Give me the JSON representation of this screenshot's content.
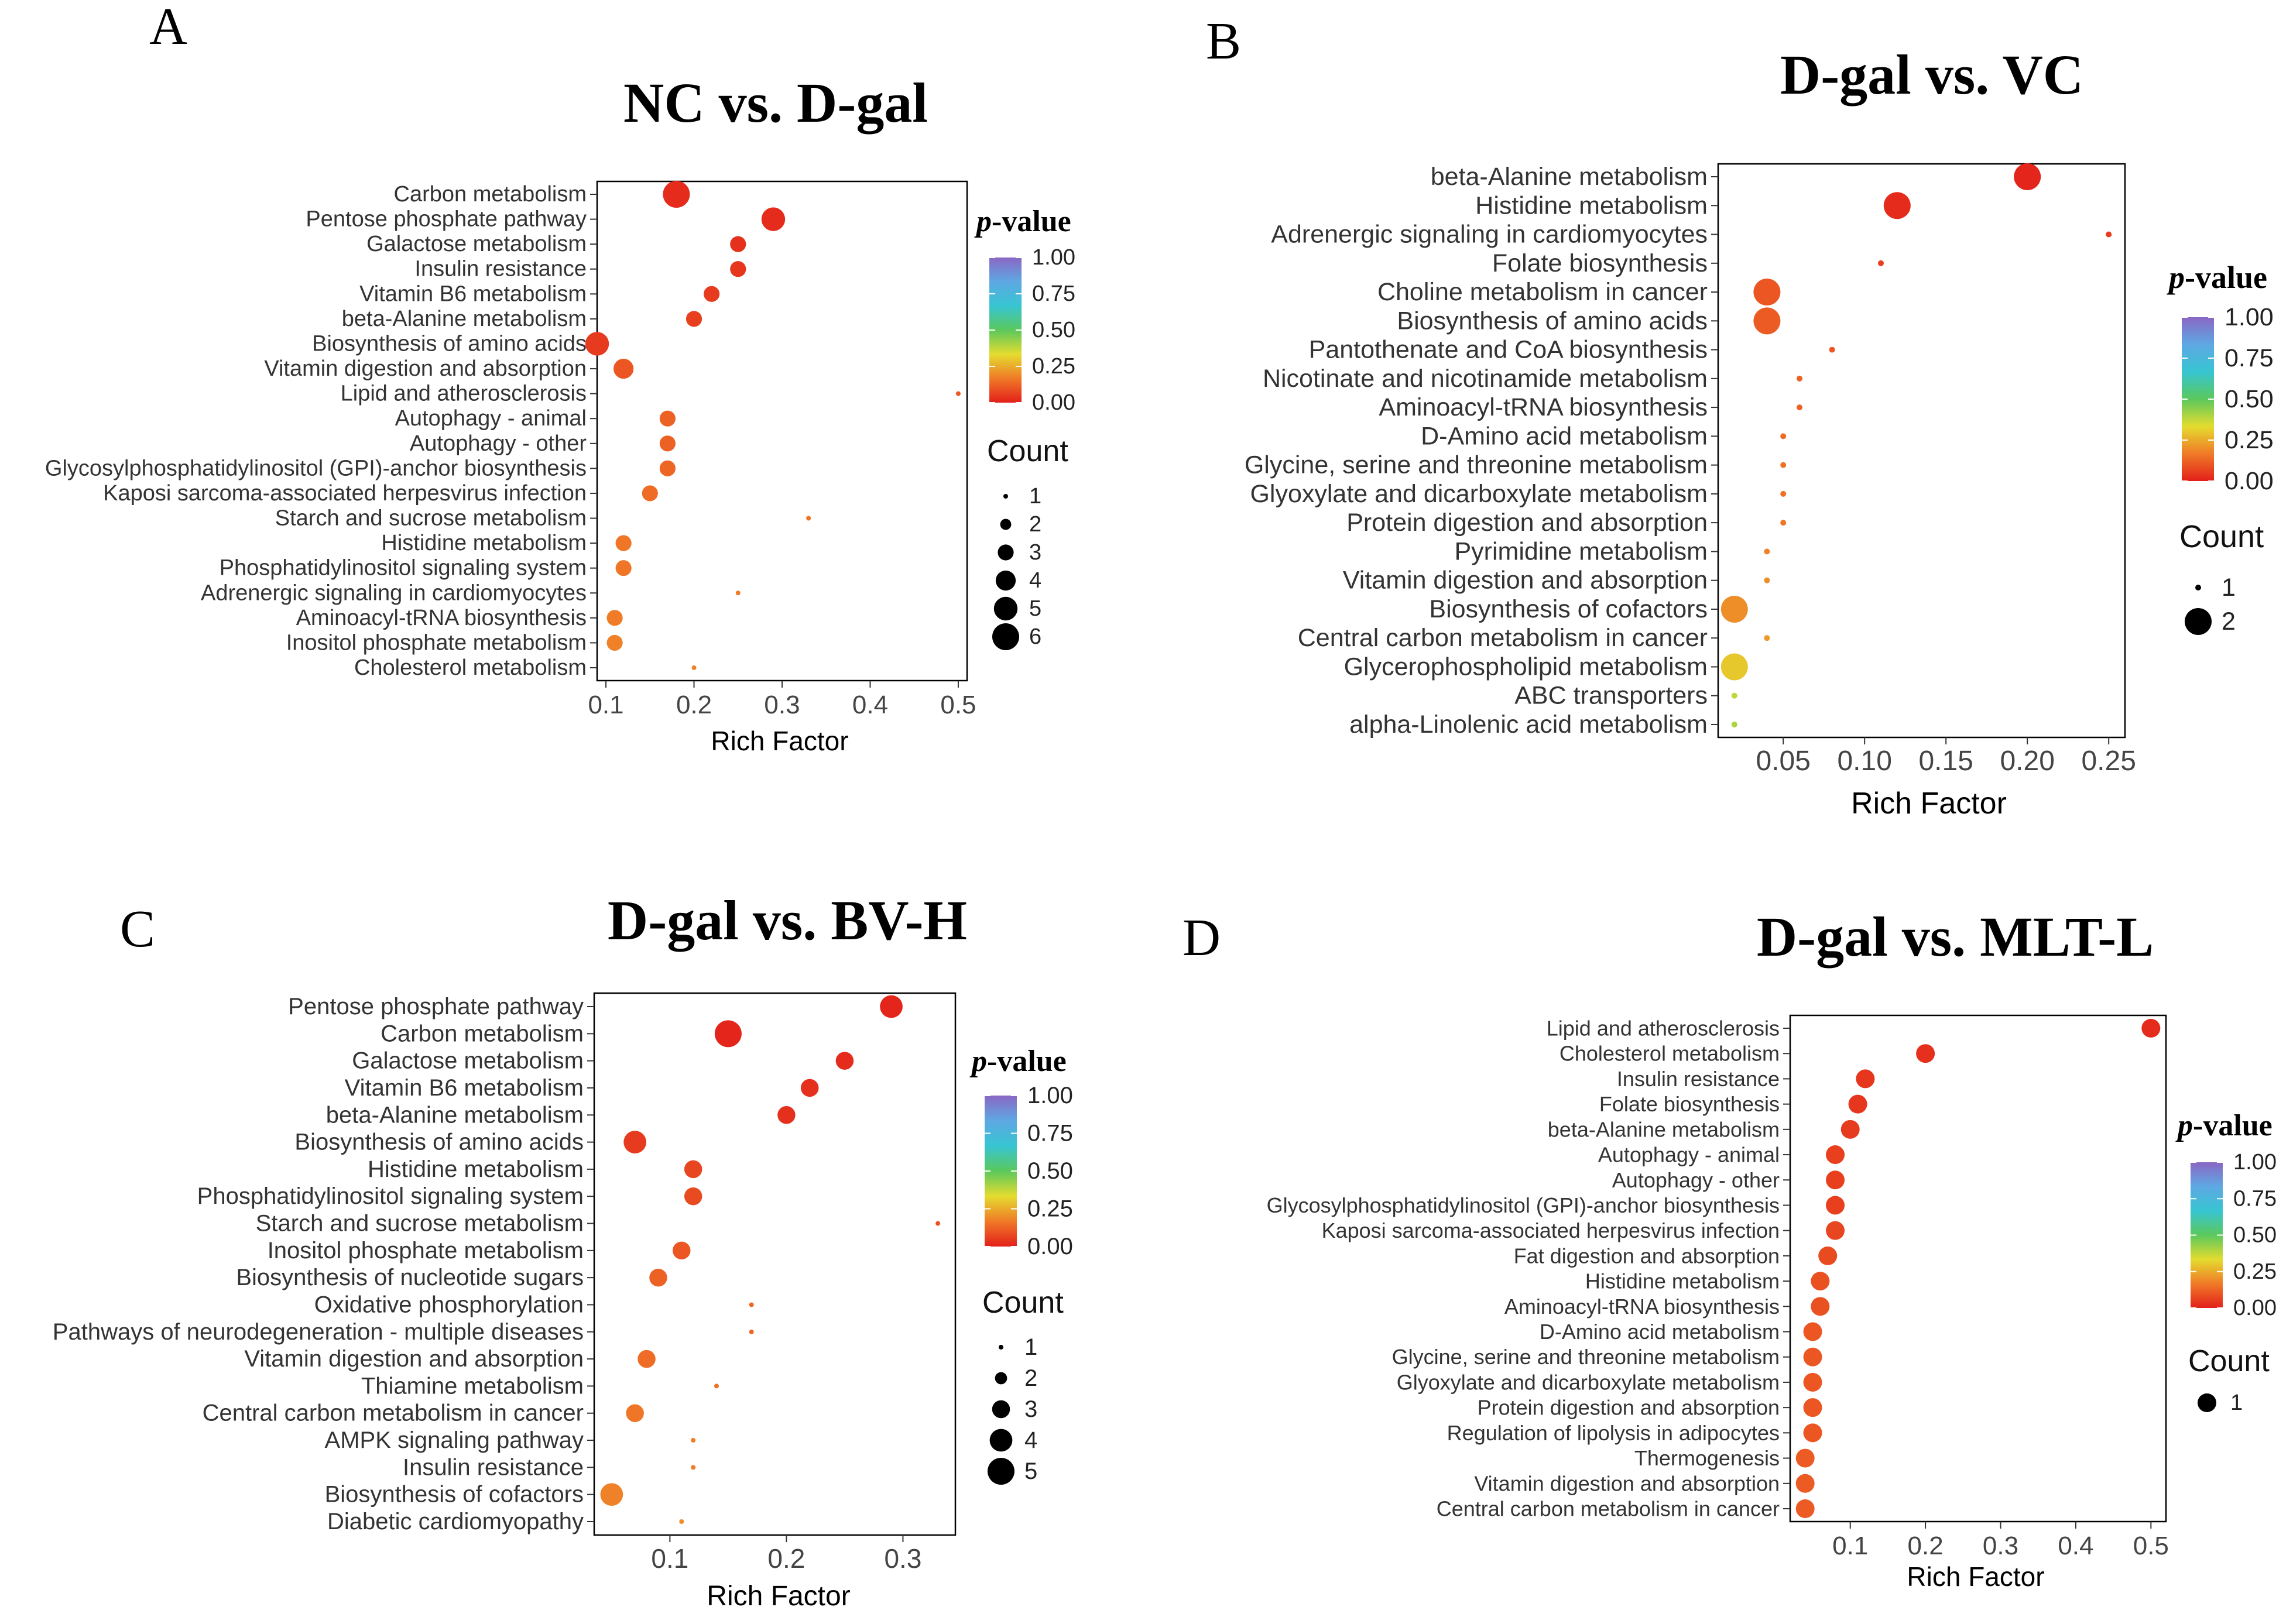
{
  "colors": {
    "colorbar": [
      "#e3201b",
      "#f07a27",
      "#e4dc2f",
      "#5bc85c",
      "#37c5d2",
      "#5ea8e3",
      "#8a67c4"
    ],
    "background": "#ffffff",
    "axis": "#000000"
  },
  "legend_labels": {
    "pvalue_prefix": "p",
    "pvalue_suffix": "-value",
    "count_title": "Count"
  },
  "chart_data": [
    {
      "id": "A",
      "letter": "A",
      "type": "scatter",
      "title": "NC vs. D-gal",
      "xlabel": "Rich Factor",
      "ylabel": "",
      "xlim": [
        0.09,
        0.51
      ],
      "xticks": [
        0.1,
        0.2,
        0.3,
        0.4,
        0.5
      ],
      "xtick_labels": [
        "0.1",
        "0.2",
        "0.3",
        "0.4",
        "0.5"
      ],
      "pvalue_ticks": [
        "1.00",
        "0.75",
        "0.50",
        "0.25",
        "0.00"
      ],
      "count_levels": [
        1,
        2,
        3,
        4,
        5,
        6
      ],
      "points": [
        {
          "term": "Carbon metabolism",
          "rich_factor": 0.18,
          "count": 6,
          "pvalue": 0.02
        },
        {
          "term": "Pentose phosphate pathway",
          "rich_factor": 0.29,
          "count": 5,
          "pvalue": 0.02
        },
        {
          "term": "Galactose metabolism",
          "rich_factor": 0.25,
          "count": 3,
          "pvalue": 0.03
        },
        {
          "term": "Insulin resistance",
          "rich_factor": 0.25,
          "count": 3,
          "pvalue": 0.04
        },
        {
          "term": "Vitamin B6 metabolism",
          "rich_factor": 0.22,
          "count": 3,
          "pvalue": 0.05
        },
        {
          "term": "beta-Alanine metabolism",
          "rich_factor": 0.2,
          "count": 3,
          "pvalue": 0.06
        },
        {
          "term": "Biosynthesis of amino acids",
          "rich_factor": 0.09,
          "count": 5,
          "pvalue": 0.05
        },
        {
          "term": "Vitamin digestion and absorption",
          "rich_factor": 0.12,
          "count": 4,
          "pvalue": 0.1
        },
        {
          "term": "Lipid and atherosclerosis",
          "rich_factor": 0.5,
          "count": 1,
          "pvalue": 0.1
        },
        {
          "term": "Autophagy - animal",
          "rich_factor": 0.17,
          "count": 3,
          "pvalue": 0.12
        },
        {
          "term": "Autophagy - other",
          "rich_factor": 0.17,
          "count": 3,
          "pvalue": 0.12
        },
        {
          "term": "Glycosylphosphatidylinositol (GPI)-anchor biosynthesis",
          "rich_factor": 0.17,
          "count": 3,
          "pvalue": 0.13
        },
        {
          "term": "Kaposi sarcoma-associated herpesvirus infection",
          "rich_factor": 0.15,
          "count": 3,
          "pvalue": 0.14
        },
        {
          "term": "Starch and sucrose metabolism",
          "rich_factor": 0.33,
          "count": 1,
          "pvalue": 0.15
        },
        {
          "term": "Histidine metabolism",
          "rich_factor": 0.12,
          "count": 3,
          "pvalue": 0.16
        },
        {
          "term": "Phosphatidylinositol signaling system",
          "rich_factor": 0.12,
          "count": 3,
          "pvalue": 0.16
        },
        {
          "term": "Adrenergic signaling in cardiomyocytes",
          "rich_factor": 0.25,
          "count": 1,
          "pvalue": 0.17
        },
        {
          "term": "Aminoacyl-tRNA biosynthesis",
          "rich_factor": 0.11,
          "count": 3,
          "pvalue": 0.17
        },
        {
          "term": "Inositol phosphate metabolism",
          "rich_factor": 0.11,
          "count": 3,
          "pvalue": 0.18
        },
        {
          "term": "Cholesterol metabolism",
          "rich_factor": 0.2,
          "count": 1,
          "pvalue": 0.18
        }
      ]
    },
    {
      "id": "B",
      "letter": "B",
      "type": "scatter",
      "title": "D-gal vs. VC",
      "xlabel": "Rich Factor",
      "ylabel": "",
      "xlim": [
        0.01,
        0.26
      ],
      "xticks": [
        0.05,
        0.1,
        0.15,
        0.2,
        0.25
      ],
      "xtick_labels": [
        "0.05",
        "0.10",
        "0.15",
        "0.20",
        "0.25"
      ],
      "pvalue_ticks": [
        "1.00",
        "0.75",
        "0.50",
        "0.25",
        "0.00"
      ],
      "count_levels": [
        1,
        2
      ],
      "points": [
        {
          "term": "beta-Alanine metabolism",
          "rich_factor": 0.2,
          "count": 2,
          "pvalue": 0.01
        },
        {
          "term": "Histidine metabolism",
          "rich_factor": 0.12,
          "count": 2,
          "pvalue": 0.02
        },
        {
          "term": "Adrenergic signaling in cardiomyocytes",
          "rich_factor": 0.25,
          "count": 1,
          "pvalue": 0.05
        },
        {
          "term": "Folate biosynthesis",
          "rich_factor": 0.11,
          "count": 1,
          "pvalue": 0.06
        },
        {
          "term": "Choline metabolism in cancer",
          "rich_factor": 0.04,
          "count": 2,
          "pvalue": 0.1
        },
        {
          "term": "Biosynthesis of amino acids",
          "rich_factor": 0.04,
          "count": 2,
          "pvalue": 0.11
        },
        {
          "term": "Pantothenate and CoA biosynthesis",
          "rich_factor": 0.08,
          "count": 1,
          "pvalue": 0.1
        },
        {
          "term": "Nicotinate and nicotinamide metabolism",
          "rich_factor": 0.06,
          "count": 1,
          "pvalue": 0.12
        },
        {
          "term": "Aminoacyl-tRNA biosynthesis",
          "rich_factor": 0.06,
          "count": 1,
          "pvalue": 0.12
        },
        {
          "term": "D-Amino acid metabolism",
          "rich_factor": 0.05,
          "count": 1,
          "pvalue": 0.14
        },
        {
          "term": "Glycine, serine and threonine metabolism",
          "rich_factor": 0.05,
          "count": 1,
          "pvalue": 0.15
        },
        {
          "term": "Glyoxylate and dicarboxylate metabolism",
          "rich_factor": 0.05,
          "count": 1,
          "pvalue": 0.15
        },
        {
          "term": "Protein digestion and absorption",
          "rich_factor": 0.05,
          "count": 1,
          "pvalue": 0.16
        },
        {
          "term": "Pyrimidine metabolism",
          "rich_factor": 0.04,
          "count": 1,
          "pvalue": 0.18
        },
        {
          "term": "Vitamin digestion and absorption",
          "rich_factor": 0.04,
          "count": 1,
          "pvalue": 0.2
        },
        {
          "term": "Biosynthesis of cofactors",
          "rich_factor": 0.02,
          "count": 2,
          "pvalue": 0.2
        },
        {
          "term": "Central carbon metabolism in cancer",
          "rich_factor": 0.04,
          "count": 1,
          "pvalue": 0.22
        },
        {
          "term": "Glycerophospholipid metabolism",
          "rich_factor": 0.02,
          "count": 2,
          "pvalue": 0.3
        },
        {
          "term": "ABC transporters",
          "rich_factor": 0.02,
          "count": 1,
          "pvalue": 0.38
        },
        {
          "term": "alpha-Linolenic acid metabolism",
          "rich_factor": 0.02,
          "count": 1,
          "pvalue": 0.4
        }
      ]
    },
    {
      "id": "C",
      "letter": "C",
      "type": "scatter",
      "title": "D-gal vs. BV-H",
      "xlabel": "Rich Factor",
      "ylabel": "",
      "xlim": [
        0.035,
        0.345
      ],
      "xticks": [
        0.1,
        0.2,
        0.3
      ],
      "xtick_labels": [
        "0.1",
        "0.2",
        "0.3"
      ],
      "pvalue_ticks": [
        "1.00",
        "0.75",
        "0.50",
        "0.25",
        "0.00"
      ],
      "count_levels": [
        1,
        2,
        3,
        4,
        5
      ],
      "points": [
        {
          "term": "Pentose phosphate pathway",
          "rich_factor": 0.29,
          "count": 4,
          "pvalue": 0.01
        },
        {
          "term": "Carbon metabolism",
          "rich_factor": 0.15,
          "count": 5,
          "pvalue": 0.01
        },
        {
          "term": "Galactose metabolism",
          "rich_factor": 0.25,
          "count": 3,
          "pvalue": 0.02
        },
        {
          "term": "Vitamin B6 metabolism",
          "rich_factor": 0.22,
          "count": 3,
          "pvalue": 0.03
        },
        {
          "term": "beta-Alanine metabolism",
          "rich_factor": 0.2,
          "count": 3,
          "pvalue": 0.03
        },
        {
          "term": "Biosynthesis of amino acids",
          "rich_factor": 0.07,
          "count": 4,
          "pvalue": 0.05
        },
        {
          "term": "Histidine metabolism",
          "rich_factor": 0.12,
          "count": 3,
          "pvalue": 0.07
        },
        {
          "term": "Phosphatidylinositol signaling system",
          "rich_factor": 0.12,
          "count": 3,
          "pvalue": 0.08
        },
        {
          "term": "Starch and sucrose metabolism",
          "rich_factor": 0.33,
          "count": 1,
          "pvalue": 0.09
        },
        {
          "term": "Inositol phosphate metabolism",
          "rich_factor": 0.11,
          "count": 3,
          "pvalue": 0.1
        },
        {
          "term": "Biosynthesis of nucleotide sugars",
          "rich_factor": 0.09,
          "count": 3,
          "pvalue": 0.12
        },
        {
          "term": "Oxidative phosphorylation",
          "rich_factor": 0.17,
          "count": 1,
          "pvalue": 0.13
        },
        {
          "term": "Pathways of neurodegeneration - multiple diseases",
          "rich_factor": 0.17,
          "count": 1,
          "pvalue": 0.13
        },
        {
          "term": "Vitamin digestion and absorption",
          "rich_factor": 0.08,
          "count": 3,
          "pvalue": 0.14
        },
        {
          "term": "Thiamine metabolism",
          "rich_factor": 0.14,
          "count": 1,
          "pvalue": 0.15
        },
        {
          "term": "Central carbon metabolism in cancer",
          "rich_factor": 0.07,
          "count": 3,
          "pvalue": 0.16
        },
        {
          "term": "AMPK signaling pathway",
          "rich_factor": 0.12,
          "count": 1,
          "pvalue": 0.17
        },
        {
          "term": "Insulin resistance",
          "rich_factor": 0.12,
          "count": 1,
          "pvalue": 0.17
        },
        {
          "term": "Biosynthesis of cofactors",
          "rich_factor": 0.05,
          "count": 4,
          "pvalue": 0.18
        },
        {
          "term": "Diabetic cardiomyopathy",
          "rich_factor": 0.11,
          "count": 1,
          "pvalue": 0.2
        }
      ]
    },
    {
      "id": "D",
      "letter": "D",
      "type": "scatter",
      "title": "D-gal vs. MLT-L",
      "xlabel": "Rich Factor",
      "ylabel": "",
      "xlim": [
        0.02,
        0.52
      ],
      "xticks": [
        0.1,
        0.2,
        0.3,
        0.4,
        0.5
      ],
      "xtick_labels": [
        "0.1",
        "0.2",
        "0.3",
        "0.4",
        "0.5"
      ],
      "pvalue_ticks": [
        "1.00",
        "0.75",
        "0.50",
        "0.25",
        "0.00"
      ],
      "count_levels": [
        1
      ],
      "points": [
        {
          "term": "Lipid and atherosclerosis",
          "rich_factor": 0.5,
          "count": 1,
          "pvalue": 0.02
        },
        {
          "term": "Cholesterol metabolism",
          "rich_factor": 0.2,
          "count": 1,
          "pvalue": 0.03
        },
        {
          "term": "Insulin resistance",
          "rich_factor": 0.12,
          "count": 1,
          "pvalue": 0.04
        },
        {
          "term": "Folate biosynthesis",
          "rich_factor": 0.11,
          "count": 1,
          "pvalue": 0.04
        },
        {
          "term": "beta-Alanine metabolism",
          "rich_factor": 0.1,
          "count": 1,
          "pvalue": 0.05
        },
        {
          "term": "Autophagy - animal",
          "rich_factor": 0.08,
          "count": 1,
          "pvalue": 0.06
        },
        {
          "term": "Autophagy - other",
          "rich_factor": 0.08,
          "count": 1,
          "pvalue": 0.06
        },
        {
          "term": "Glycosylphosphatidylinositol (GPI)-anchor biosynthesis",
          "rich_factor": 0.08,
          "count": 1,
          "pvalue": 0.06
        },
        {
          "term": "Kaposi sarcoma-associated herpesvirus infection",
          "rich_factor": 0.08,
          "count": 1,
          "pvalue": 0.07
        },
        {
          "term": "Fat digestion and absorption",
          "rich_factor": 0.07,
          "count": 1,
          "pvalue": 0.08
        },
        {
          "term": "Histidine metabolism",
          "rich_factor": 0.06,
          "count": 1,
          "pvalue": 0.09
        },
        {
          "term": "Aminoacyl-tRNA biosynthesis",
          "rich_factor": 0.06,
          "count": 1,
          "pvalue": 0.09
        },
        {
          "term": "D-Amino acid metabolism",
          "rich_factor": 0.05,
          "count": 1,
          "pvalue": 0.1
        },
        {
          "term": "Glycine, serine and threonine metabolism",
          "rich_factor": 0.05,
          "count": 1,
          "pvalue": 0.1
        },
        {
          "term": "Glyoxylate and dicarboxylate metabolism",
          "rich_factor": 0.05,
          "count": 1,
          "pvalue": 0.1
        },
        {
          "term": "Protein digestion and absorption",
          "rich_factor": 0.05,
          "count": 1,
          "pvalue": 0.1
        },
        {
          "term": "Regulation of lipolysis in adipocytes",
          "rich_factor": 0.05,
          "count": 1,
          "pvalue": 0.1
        },
        {
          "term": "Thermogenesis",
          "rich_factor": 0.04,
          "count": 1,
          "pvalue": 0.11
        },
        {
          "term": "Vitamin digestion and absorption",
          "rich_factor": 0.04,
          "count": 1,
          "pvalue": 0.11
        },
        {
          "term": "Central carbon metabolism in cancer",
          "rich_factor": 0.04,
          "count": 1,
          "pvalue": 0.11
        }
      ]
    }
  ]
}
